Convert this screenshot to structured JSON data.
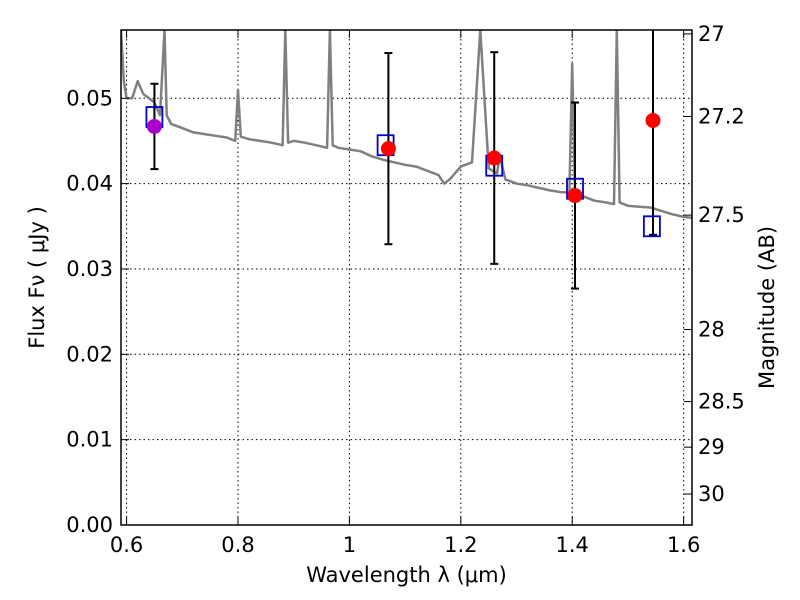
{
  "chart_data": {
    "type": "scatter",
    "xlabel": "Wavelength  λ (μm)",
    "ylabel": "Flux  Fν  ( μJy )",
    "ylabel_right": "Magnitude (AB)",
    "xlim": [
      0.59,
      1.615
    ],
    "ylim": [
      0.0,
      0.058
    ],
    "grid": true,
    "x_ticks": [
      0.6,
      0.8,
      1.0,
      1.2,
      1.4,
      1.6
    ],
    "x_tick_labels": [
      "0.6",
      "0.8",
      "1",
      "1.2",
      "1.4",
      "1.6"
    ],
    "y_ticks": [
      0.0,
      0.01,
      0.02,
      0.03,
      0.04,
      0.05
    ],
    "y_tick_labels": [
      "0.00",
      "0.01",
      "0.02",
      "0.03",
      "0.04",
      "0.05"
    ],
    "right_ticks": [
      27,
      27.2,
      27.5,
      28,
      28.5,
      29,
      30
    ],
    "right_tick_labels": [
      "27",
      "27.2",
      "27.5",
      "28",
      "28.5",
      "29",
      "30"
    ],
    "colors": {
      "spectrum": "#808080",
      "model": "#0000cc",
      "observed": "#ff0000",
      "highlight": "#aa00cc",
      "errorbar": "#000000"
    },
    "series": [
      {
        "kind": "spectrum",
        "x": [
          0.59,
          0.595,
          0.6,
          0.605,
          0.61,
          0.62,
          0.63,
          0.64,
          0.65,
          0.66,
          0.668,
          0.672,
          0.68,
          0.7,
          0.72,
          0.74,
          0.76,
          0.78,
          0.795,
          0.8,
          0.805,
          0.82,
          0.84,
          0.86,
          0.88,
          0.885,
          0.89,
          0.9,
          0.92,
          0.94,
          0.96,
          0.965,
          0.97,
          0.98,
          1.0,
          1.02,
          1.04,
          1.06,
          1.08,
          1.1,
          1.12,
          1.14,
          1.16,
          1.17,
          1.18,
          1.2,
          1.22,
          1.235,
          1.25,
          1.265,
          1.27,
          1.28,
          1.3,
          1.32,
          1.34,
          1.36,
          1.38,
          1.395,
          1.4,
          1.405,
          1.42,
          1.44,
          1.46,
          1.475,
          1.48,
          1.485,
          1.5,
          1.52,
          1.54,
          1.56,
          1.58,
          1.6,
          1.615
        ],
        "y": [
          0.058,
          0.052,
          0.05,
          0.05,
          0.05,
          0.052,
          0.0505,
          0.05,
          0.0495,
          0.048,
          0.058,
          0.048,
          0.047,
          0.0465,
          0.046,
          0.0458,
          0.0456,
          0.0454,
          0.045,
          0.051,
          0.0455,
          0.0452,
          0.045,
          0.0448,
          0.0445,
          0.058,
          0.0448,
          0.045,
          0.0448,
          0.0445,
          0.0442,
          0.058,
          0.0445,
          0.0442,
          0.044,
          0.0438,
          0.0432,
          0.0428,
          0.0425,
          0.0422,
          0.042,
          0.0415,
          0.041,
          0.04,
          0.0405,
          0.042,
          0.0425,
          0.058,
          0.0418,
          0.0412,
          0.0432,
          0.0405,
          0.04,
          0.0398,
          0.0395,
          0.0392,
          0.039,
          0.039,
          0.054,
          0.0388,
          0.0385,
          0.038,
          0.0378,
          0.0376,
          0.058,
          0.0378,
          0.0374,
          0.0373,
          0.0372,
          0.0368,
          0.0364,
          0.0361,
          0.036
        ]
      },
      {
        "kind": "model",
        "x": [
          0.65,
          1.065,
          1.26,
          1.405,
          1.543
        ],
        "y": [
          0.0478,
          0.0445,
          0.0421,
          0.0394,
          0.035
        ]
      },
      {
        "kind": "observed",
        "x": [
          0.65,
          1.07,
          1.26,
          1.405,
          1.545
        ],
        "y": [
          0.0467,
          0.0441,
          0.043,
          0.0386,
          0.0474
        ],
        "yerr": [
          0.005,
          0.0112,
          0.0124,
          0.0109,
          0.0134
        ]
      }
    ]
  }
}
